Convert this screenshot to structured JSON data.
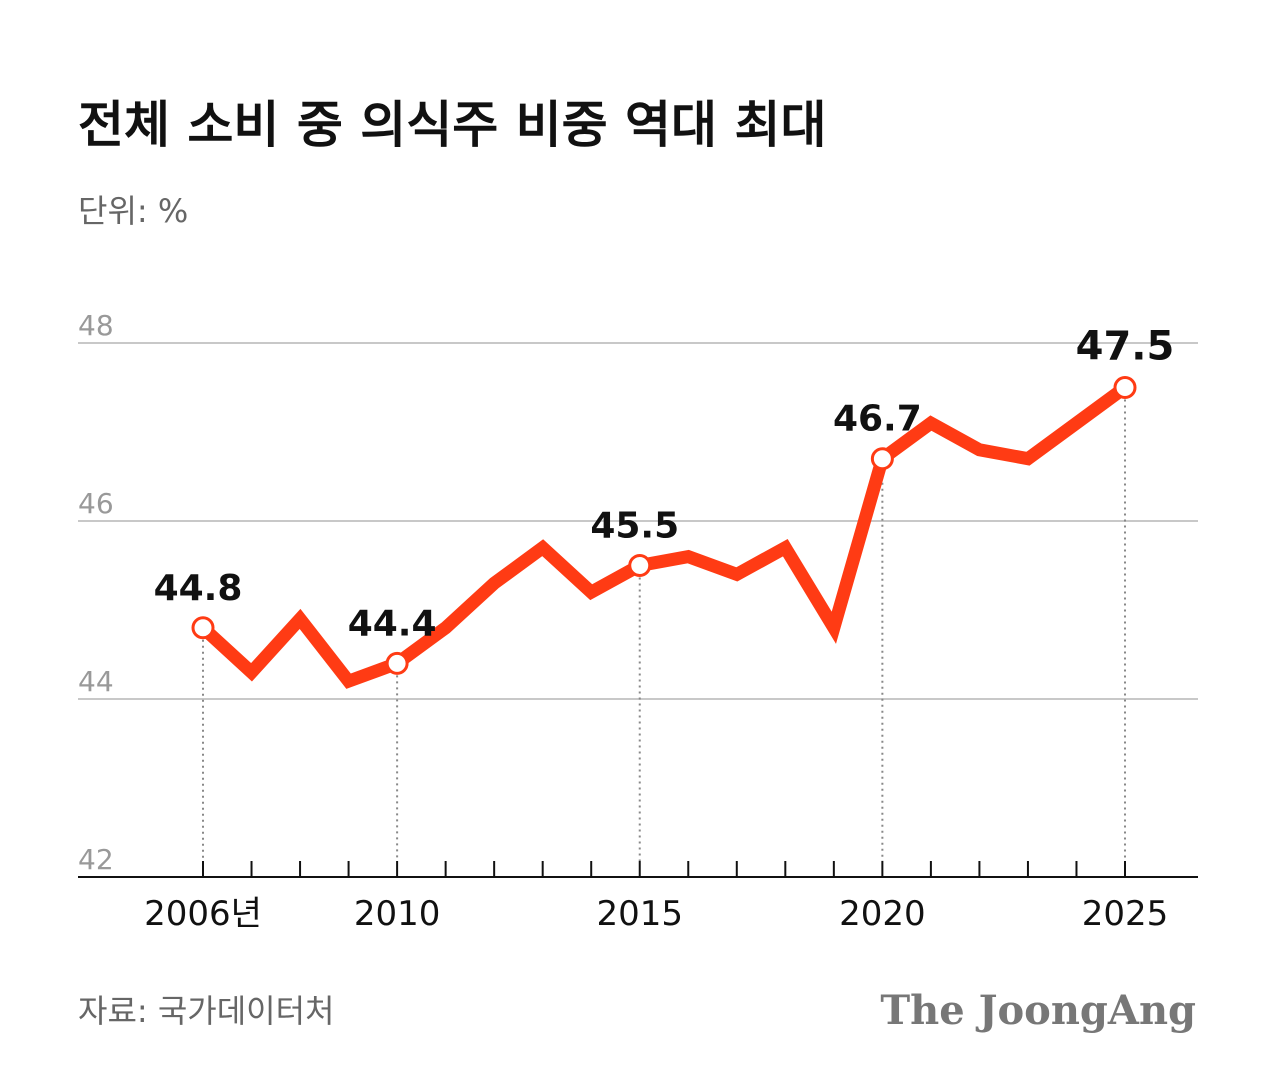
{
  "chart_data": {
    "type": "line",
    "title": "전체 소비 중 의식주 비중 역대 최대",
    "subtitle": "단위: %",
    "source": "자료: 국가데이터처",
    "brand": "The JoongAng",
    "categories": [
      "2006년",
      null,
      null,
      null,
      "2010",
      null,
      null,
      null,
      null,
      "2015",
      null,
      null,
      null,
      null,
      "2020",
      null,
      null,
      null,
      null,
      "2025"
    ],
    "values": [
      44.8,
      44.3,
      44.9,
      44.2,
      44.4,
      44.8,
      45.3,
      45.7,
      45.2,
      45.5,
      45.6,
      45.4,
      45.7,
      44.8,
      46.7,
      47.1,
      46.8,
      46.7,
      47.1,
      47.5
    ],
    "value_labels": [
      "44.8",
      null,
      null,
      null,
      "44.4",
      null,
      null,
      null,
      null,
      "45.5",
      null,
      null,
      null,
      null,
      "46.7",
      null,
      null,
      null,
      null,
      "47.5"
    ],
    "color": "#ff3b14",
    "ylim": [
      42,
      48
    ],
    "yticks": [
      42,
      44,
      46,
      48
    ],
    "grid": true
  }
}
